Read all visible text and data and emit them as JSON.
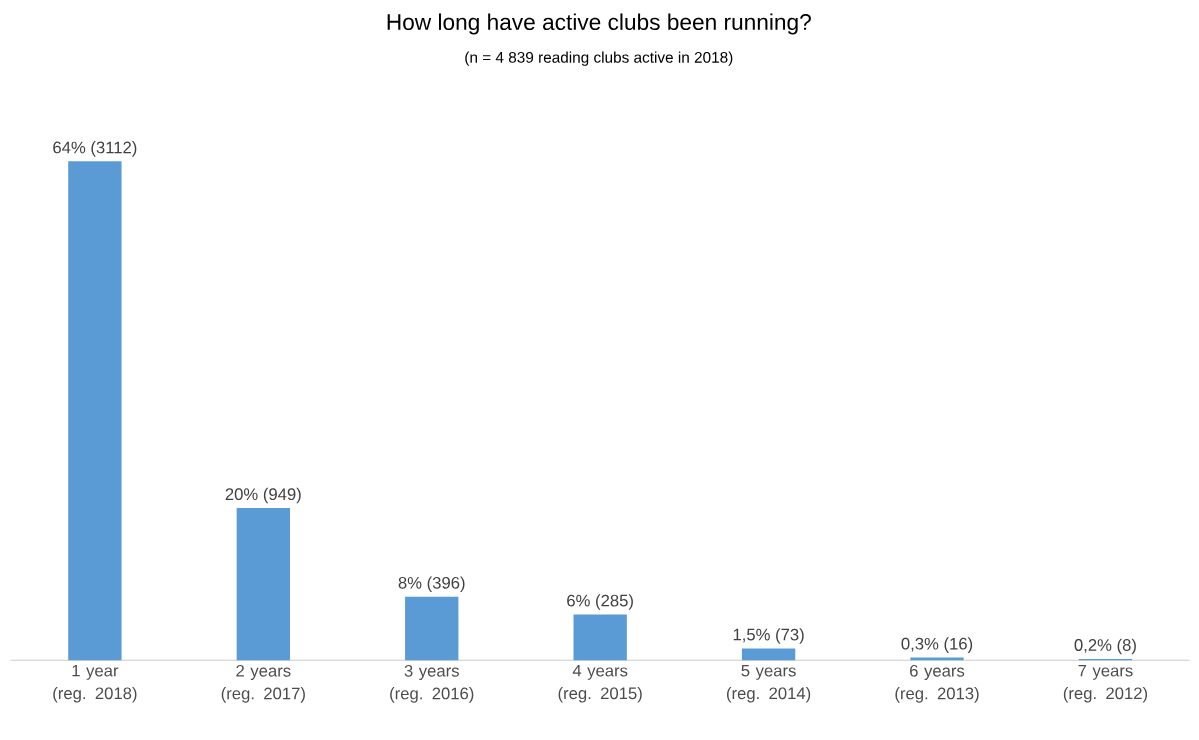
{
  "chart_data": {
    "type": "bar",
    "title": "How long have active clubs been running?",
    "subtitle": "(n = 4 839 reading clubs active in 2018)",
    "categories": [
      "1 year (reg. 2018)",
      "2 years (reg. 2017)",
      "3 years (reg. 2016)",
      "4 years (reg. 2015)",
      "5 years (reg. 2014)",
      "6 years (reg. 2013)",
      "7 years (reg. 2012)"
    ],
    "values": [
      3112,
      949,
      396,
      285,
      73,
      16,
      8
    ],
    "value_labels": [
      "64% (3112)",
      "20% (949)",
      "8% (396)",
      "6% (285)",
      "1,5% (73)",
      "0,3% (16)",
      "0,2% (8)"
    ],
    "color": "#5b9bd5"
  }
}
